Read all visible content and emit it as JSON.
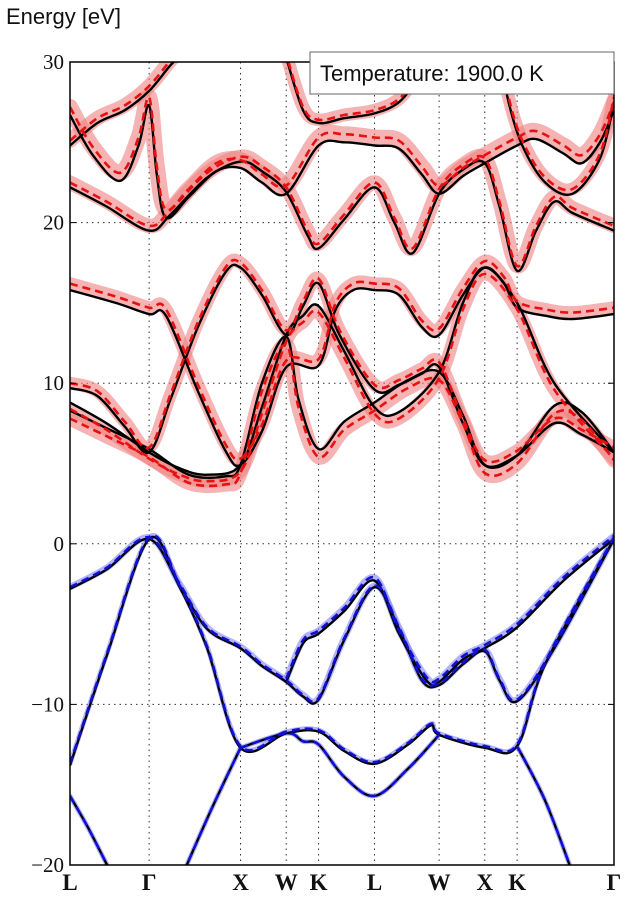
{
  "chart_data": {
    "type": "line",
    "title": "",
    "xlabel": "",
    "ylabel": "Energy [eV]",
    "ylim": [
      -20,
      30
    ],
    "yticks": [
      "−20",
      "−10",
      "0",
      "10",
      "20",
      "30"
    ],
    "ytick_values": [
      -20,
      -10,
      0,
      10,
      20,
      30
    ],
    "kpoints": [
      {
        "label": "L",
        "k": 0
      },
      {
        "label": "Γ",
        "k": 0.866
      },
      {
        "label": "X",
        "k": 1.866
      },
      {
        "label": "W",
        "k": 2.366
      },
      {
        "label": "K",
        "k": 2.72
      },
      {
        "label": "L",
        "k": 3.332
      },
      {
        "label": "W",
        "k": 4.039
      },
      {
        "label": "X",
        "k": 4.539
      },
      {
        "label": "K",
        "k": 4.893
      },
      {
        "label": "Γ",
        "k": 5.953
      }
    ],
    "grid": true,
    "legend": {
      "text": "Temperature: 1900.0 K",
      "placement": "top-right"
    },
    "colors": {
      "reference": "#000000",
      "valence": "#1010d0",
      "conduction": "#e81010",
      "valence_shade": "#8080ff",
      "conduction_shade": "#f08080"
    },
    "valence_bands": [
      {
        "offset": 0.1,
        "spread": 0.4,
        "points": [
          [
            0,
            -2.8
          ],
          [
            0.4,
            -1.6
          ],
          [
            0.866,
            0.3
          ],
          [
            1.2,
            -2.6
          ],
          [
            1.5,
            -5.3
          ],
          [
            1.866,
            -6.5
          ],
          [
            2.1,
            -7.6
          ],
          [
            2.366,
            -8.6
          ],
          [
            2.55,
            -9.5
          ],
          [
            2.72,
            -9.7
          ],
          [
            3.0,
            -6
          ],
          [
            3.332,
            -2.7
          ],
          [
            3.6,
            -5.3
          ],
          [
            3.85,
            -8.5
          ],
          [
            4.039,
            -8.8
          ],
          [
            4.3,
            -7.5
          ],
          [
            4.539,
            -6.7
          ],
          [
            4.7,
            -8.5
          ],
          [
            4.893,
            -9.8
          ],
          [
            5.3,
            -6.5
          ],
          [
            5.953,
            0.3
          ]
        ]
      },
      {
        "offset": 0.1,
        "spread": 0.3,
        "points": [
          [
            0,
            -13.8
          ],
          [
            0.4,
            -7
          ],
          [
            0.866,
            0.3
          ],
          [
            1.2,
            -2.7
          ],
          [
            1.5,
            -6.5
          ],
          [
            1.866,
            -12.7
          ],
          [
            2.366,
            -11.8
          ],
          [
            2.72,
            -11.7
          ],
          [
            3.0,
            -12.9
          ],
          [
            3.332,
            -13.7
          ],
          [
            3.7,
            -12.5
          ],
          [
            3.95,
            -11.3
          ],
          [
            4.039,
            -11.9
          ],
          [
            4.539,
            -12.7
          ],
          [
            4.893,
            -12.6
          ],
          [
            5.2,
            -7.5
          ],
          [
            5.953,
            0.3
          ]
        ]
      },
      {
        "offset": 0.2,
        "spread": 0.4,
        "points": [
          [
            2.366,
            -8.6
          ],
          [
            2.55,
            -6.2
          ],
          [
            2.72,
            -5.6
          ],
          [
            3.0,
            -4.2
          ],
          [
            3.332,
            -2.3
          ],
          [
            3.6,
            -5.6
          ],
          [
            3.9,
            -8.5
          ],
          [
            4.039,
            -8.6
          ],
          [
            4.3,
            -7.2
          ],
          [
            4.539,
            -6.5
          ],
          [
            4.893,
            -5.2
          ],
          [
            5.4,
            -2.3
          ],
          [
            5.953,
            0.3
          ]
        ]
      },
      {
        "offset": 0.0,
        "spread": 0.3,
        "points": [
          [
            1.866,
            -12.7
          ],
          [
            2.366,
            -11.8
          ],
          [
            2.55,
            -12.3
          ],
          [
            2.72,
            -12.5
          ],
          [
            3.0,
            -14.5
          ],
          [
            3.332,
            -15.7
          ],
          [
            3.7,
            -14
          ],
          [
            4.039,
            -11.9
          ]
        ]
      },
      {
        "offset": 0.0,
        "spread": 0.3,
        "points": [
          [
            0,
            -15.7
          ],
          [
            0.2,
            -17.7
          ],
          [
            0.45,
            -20.5
          ]
        ]
      },
      {
        "offset": 0.0,
        "spread": 0.3,
        "points": [
          [
            1.24,
            -20.5
          ],
          [
            1.55,
            -16.5
          ],
          [
            1.866,
            -12.7
          ]
        ]
      },
      {
        "offset": 0.0,
        "spread": 0.3,
        "points": [
          [
            4.893,
            -12.6
          ],
          [
            5.2,
            -16
          ],
          [
            5.5,
            -20.5
          ]
        ]
      }
    ],
    "conduction_bands": [
      {
        "offset": 0.4,
        "spread": 0.8,
        "points": [
          [
            0,
            15.8
          ],
          [
            0.5,
            15.0
          ],
          [
            0.866,
            14.3
          ],
          [
            1.05,
            14.2
          ],
          [
            1.4,
            9.5
          ],
          [
            1.7,
            5.8
          ],
          [
            1.866,
            4.9
          ],
          [
            2.1,
            7
          ],
          [
            2.366,
            11.0
          ],
          [
            2.72,
            11.1
          ],
          [
            2.9,
            14.5
          ],
          [
            3.1,
            15.8
          ],
          [
            3.332,
            15.8
          ],
          [
            3.6,
            15.5
          ],
          [
            3.85,
            13.5
          ],
          [
            4.039,
            13.0
          ],
          [
            4.3,
            15.5
          ],
          [
            4.539,
            17.2
          ],
          [
            4.75,
            16.2
          ],
          [
            4.893,
            14.7
          ],
          [
            5.2,
            14.2
          ],
          [
            5.5,
            14.0
          ],
          [
            5.953,
            14.3
          ]
        ]
      },
      {
        "offset": 0.3,
        "spread": 0.8,
        "points": [
          [
            0,
            9.7
          ],
          [
            0.3,
            9.2
          ],
          [
            0.6,
            7.3
          ],
          [
            0.866,
            5.7
          ],
          [
            1.1,
            9
          ],
          [
            1.4,
            13.5
          ],
          [
            1.7,
            16.9
          ],
          [
            1.866,
            17.2
          ],
          [
            2.1,
            15.5
          ],
          [
            2.366,
            13.0
          ],
          [
            2.55,
            14.8
          ],
          [
            2.72,
            16.2
          ],
          [
            2.95,
            13.0
          ],
          [
            3.332,
            9.6
          ],
          [
            3.6,
            9.9
          ],
          [
            3.85,
            10.6
          ],
          [
            4.039,
            11.0
          ],
          [
            4.3,
            7.5
          ],
          [
            4.539,
            4.9
          ],
          [
            4.893,
            5.5
          ],
          [
            5.3,
            7.5
          ],
          [
            5.6,
            6.8
          ],
          [
            5.953,
            5.7
          ]
        ]
      },
      {
        "offset": -0.4,
        "spread": 0.8,
        "points": [
          [
            0,
            8.8
          ],
          [
            0.4,
            7.5
          ],
          [
            0.866,
            5.7
          ],
          [
            1.2,
            4.7
          ],
          [
            1.5,
            4.3
          ],
          [
            1.866,
            4.9
          ],
          [
            2.1,
            8.5
          ],
          [
            2.366,
            13.0
          ],
          [
            2.55,
            14.2
          ],
          [
            2.72,
            14.8
          ],
          [
            3.0,
            12
          ],
          [
            3.332,
            8.5
          ],
          [
            3.6,
            8.2
          ],
          [
            4.039,
            10.7
          ],
          [
            4.3,
            15.0
          ],
          [
            4.539,
            17.2
          ],
          [
            4.893,
            15.0
          ],
          [
            5.3,
            10.0
          ],
          [
            5.953,
            5.7
          ]
        ]
      },
      {
        "offset": -0.5,
        "spread": 0.9,
        "points": [
          [
            0,
            8.3
          ],
          [
            0.4,
            7.2
          ],
          [
            0.866,
            5.9
          ],
          [
            1.3,
            4.3
          ],
          [
            1.7,
            4.2
          ],
          [
            1.866,
            4.9
          ],
          [
            2.1,
            10
          ],
          [
            2.366,
            12.9
          ],
          [
            2.5,
            9
          ],
          [
            2.72,
            5.9
          ],
          [
            3.0,
            7.6
          ],
          [
            3.332,
            8.8
          ],
          [
            3.7,
            10.2
          ],
          [
            4.039,
            10.7
          ],
          [
            4.3,
            8
          ],
          [
            4.539,
            4.9
          ],
          [
            4.893,
            5.5
          ],
          [
            5.3,
            8.6
          ],
          [
            5.6,
            8.2
          ],
          [
            5.953,
            5.7
          ]
        ]
      },
      {
        "offset": 0.3,
        "spread": 0.9,
        "points": [
          [
            0,
            22.2
          ],
          [
            0.4,
            21.0
          ],
          [
            0.866,
            19.5
          ],
          [
            1.1,
            20.5
          ],
          [
            1.5,
            22.8
          ],
          [
            1.866,
            23.8
          ],
          [
            2.1,
            23.2
          ],
          [
            2.366,
            21.9
          ],
          [
            2.6,
            19.2
          ],
          [
            2.72,
            18.4
          ],
          [
            3.0,
            20.2
          ],
          [
            3.332,
            22.2
          ],
          [
            3.55,
            20
          ],
          [
            3.75,
            18.1
          ],
          [
            4.039,
            21.8
          ],
          [
            4.3,
            23.3
          ],
          [
            4.539,
            23.7
          ],
          [
            4.7,
            21
          ],
          [
            4.893,
            17.0
          ],
          [
            5.1,
            19.5
          ],
          [
            5.3,
            21.3
          ],
          [
            5.5,
            20.6
          ],
          [
            5.953,
            19.5
          ]
        ]
      },
      {
        "offset": 0.5,
        "spread": 1.0,
        "points": [
          [
            0,
            26.7
          ],
          [
            0.25,
            24.2
          ],
          [
            0.55,
            22.6
          ],
          [
            0.75,
            24.8
          ],
          [
            0.866,
            27.3
          ],
          [
            0.95,
            23
          ],
          [
            1.05,
            20.3
          ],
          [
            1.3,
            21.6
          ],
          [
            1.6,
            23.2
          ],
          [
            1.866,
            23.4
          ],
          [
            2.1,
            22.5
          ],
          [
            2.366,
            21.8
          ],
          [
            2.72,
            24.8
          ],
          [
            3.0,
            25.0
          ],
          [
            3.332,
            24.8
          ],
          [
            3.6,
            24.6
          ],
          [
            3.85,
            23
          ],
          [
            4.039,
            21.8
          ],
          [
            4.3,
            22.9
          ],
          [
            4.539,
            23.7
          ],
          [
            4.893,
            24.8
          ],
          [
            5.1,
            25.2
          ],
          [
            5.4,
            24.3
          ],
          [
            5.6,
            23.7
          ],
          [
            5.8,
            25
          ],
          [
            5.953,
            27.0
          ]
        ]
      },
      {
        "offset": 0.3,
        "spread": 0.9,
        "points": [
          [
            0,
            24.8
          ],
          [
            0.3,
            26.2
          ],
          [
            0.6,
            27.0
          ],
          [
            0.866,
            28.2
          ],
          [
            1.1,
            29.8
          ],
          [
            1.25,
            30.6
          ]
        ]
      },
      {
        "offset": 0.2,
        "spread": 0.8,
        "points": [
          [
            2.35,
            30.6
          ],
          [
            2.55,
            27
          ],
          [
            2.72,
            26.2
          ],
          [
            3.0,
            26.5
          ],
          [
            3.332,
            26.8
          ],
          [
            3.6,
            27.5
          ],
          [
            3.8,
            29
          ],
          [
            3.9,
            30.6
          ]
        ]
      },
      {
        "offset": 0.3,
        "spread": 0.8,
        "points": [
          [
            4.7,
            30.6
          ],
          [
            4.8,
            27.5
          ],
          [
            4.95,
            24.8
          ],
          [
            5.2,
            22.5
          ],
          [
            5.5,
            21.8
          ],
          [
            5.8,
            24
          ],
          [
            5.953,
            27.5
          ]
        ]
      }
    ]
  }
}
